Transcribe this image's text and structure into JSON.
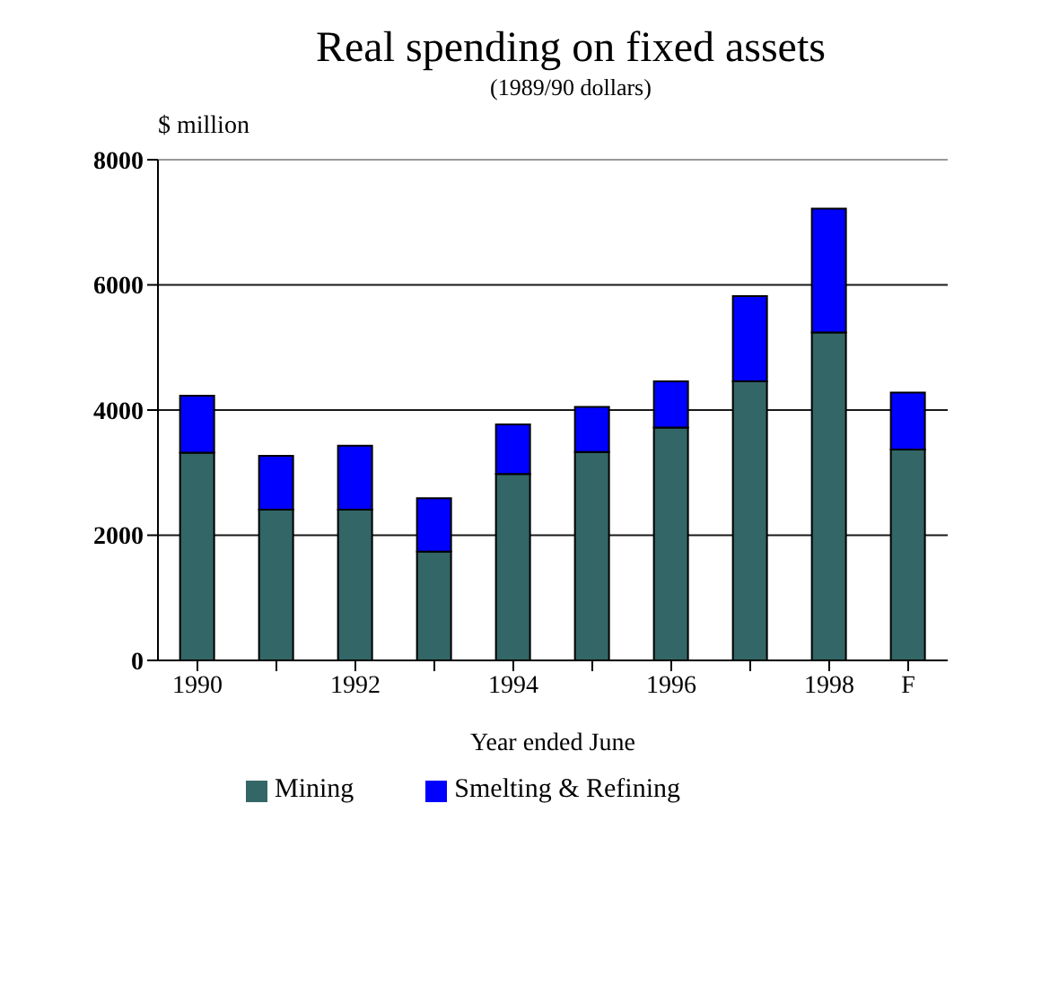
{
  "chart_data": {
    "type": "bar",
    "title": "Real spending on fixed assets",
    "subtitle": "(1989/90 dollars)",
    "ylabel": "$ million",
    "xlabel": "Year ended June",
    "categories": [
      "1990",
      null,
      "1992",
      null,
      "1994",
      null,
      "1996",
      null,
      "1998",
      "F"
    ],
    "series": [
      {
        "name": "Mining",
        "color": "#336666",
        "values": [
          3320,
          2410,
          2410,
          1740,
          2980,
          3330,
          3720,
          4460,
          5240,
          3370
        ]
      },
      {
        "name": "Smelting & Refining",
        "color": "#0000ff",
        "values": [
          910,
          860,
          1020,
          850,
          790,
          720,
          740,
          1360,
          1980,
          910
        ]
      }
    ],
    "stacked": true,
    "ylim": [
      0,
      8000
    ],
    "yticks": [
      0,
      2000,
      4000,
      6000,
      8000
    ],
    "grid": "y",
    "legend": "bottom"
  }
}
